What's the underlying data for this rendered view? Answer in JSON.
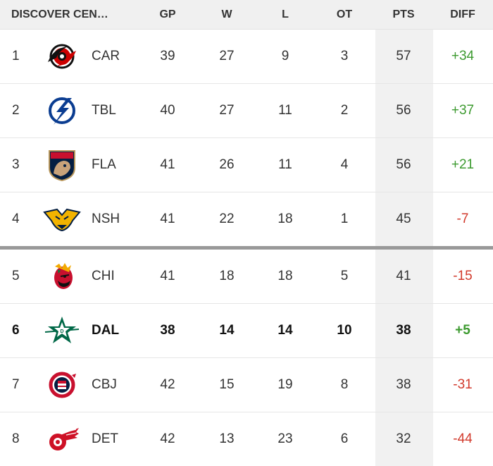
{
  "header": {
    "conference": "DISCOVER CEN…",
    "columns": [
      "GP",
      "W",
      "L",
      "OT",
      "PTS",
      "DIFF"
    ]
  },
  "rows": [
    {
      "rank": "1",
      "team": "CAR",
      "logo": "hurricanes-logo",
      "gp": "39",
      "w": "27",
      "l": "9",
      "ot": "3",
      "pts": "57",
      "diff": "+34",
      "diff_sign": "pos"
    },
    {
      "rank": "2",
      "team": "TBL",
      "logo": "lightning-logo",
      "gp": "40",
      "w": "27",
      "l": "11",
      "ot": "2",
      "pts": "56",
      "diff": "+37",
      "diff_sign": "pos"
    },
    {
      "rank": "3",
      "team": "FLA",
      "logo": "panthers-logo",
      "gp": "41",
      "w": "26",
      "l": "11",
      "ot": "4",
      "pts": "56",
      "diff": "+21",
      "diff_sign": "pos"
    },
    {
      "rank": "4",
      "team": "NSH",
      "logo": "predators-logo",
      "gp": "41",
      "w": "22",
      "l": "18",
      "ot": "1",
      "pts": "45",
      "diff": "-7",
      "diff_sign": "neg"
    },
    {
      "rank": "5",
      "team": "CHI",
      "logo": "blackhawks-logo",
      "gp": "41",
      "w": "18",
      "l": "18",
      "ot": "5",
      "pts": "41",
      "diff": "-15",
      "diff_sign": "neg"
    },
    {
      "rank": "6",
      "team": "DAL",
      "logo": "stars-logo",
      "gp": "38",
      "w": "14",
      "l": "14",
      "ot": "10",
      "pts": "38",
      "diff": "+5",
      "diff_sign": "pos",
      "highlight": true
    },
    {
      "rank": "7",
      "team": "CBJ",
      "logo": "blue-jackets-logo",
      "gp": "42",
      "w": "15",
      "l": "19",
      "ot": "8",
      "pts": "38",
      "diff": "-31",
      "diff_sign": "neg"
    },
    {
      "rank": "8",
      "team": "DET",
      "logo": "red-wings-logo",
      "gp": "42",
      "w": "13",
      "l": "23",
      "ot": "6",
      "pts": "32",
      "diff": "-44",
      "diff_sign": "neg"
    }
  ],
  "colors": {
    "positive": "#3c9a2f",
    "negative": "#d23a2c",
    "header_bg": "#f0f0f0",
    "pts_column_bg": "#f1f1f1",
    "cutline": "#999999"
  }
}
